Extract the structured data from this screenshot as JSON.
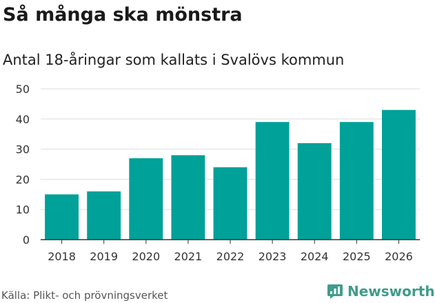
{
  "header": {
    "title": "Så många ska mönstra",
    "subtitle": "Antal 18-åringar som kallats i Svalövs kommun"
  },
  "footer": {
    "source": "Källa: Plikt- och prövningsverket",
    "brand": "Newsworthy"
  },
  "colors": {
    "bar": "#00a198",
    "grid": "#dddddd",
    "axis": "#333333",
    "brand": "#3f9c8a"
  },
  "chart_data": {
    "type": "bar",
    "title": "Så många ska mönstra",
    "subtitle": "Antal 18-åringar som kallats i Svalövs kommun",
    "xlabel": "",
    "ylabel": "",
    "categories": [
      "2018",
      "2019",
      "2020",
      "2021",
      "2022",
      "2023",
      "2024",
      "2025",
      "2026"
    ],
    "values": [
      15,
      16,
      27,
      28,
      24,
      39,
      32,
      39,
      43
    ],
    "ylim": [
      0,
      50
    ],
    "yticks": [
      0,
      10,
      20,
      30,
      40,
      50
    ],
    "grid": true
  }
}
